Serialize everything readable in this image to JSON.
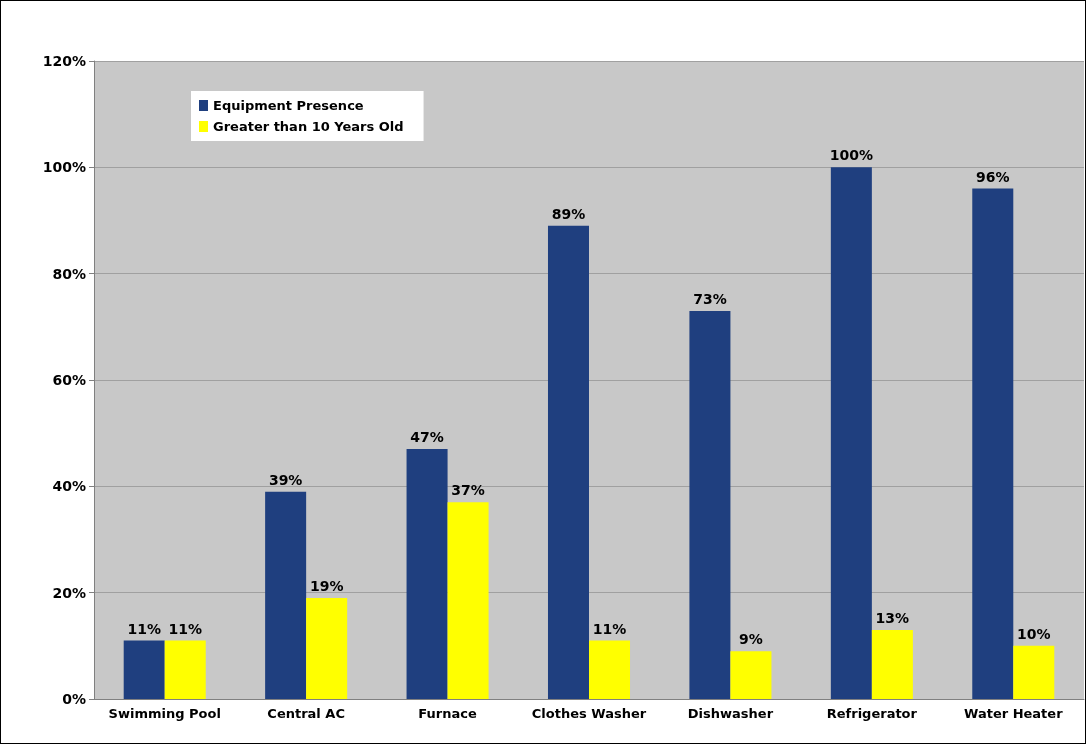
{
  "chart_data": {
    "type": "bar",
    "categories": [
      "Swimming Pool",
      "Central AC",
      "Furnace",
      "Clothes Washer",
      "Dishwasher",
      "Refrigerator",
      "Water Heater"
    ],
    "series": [
      {
        "name": "Equipment Presence",
        "color": "#1f3f7f",
        "values": [
          11,
          39,
          47,
          89,
          73,
          100,
          96
        ],
        "value_labels": [
          "11%",
          "39%",
          "47%",
          "89%",
          "73%",
          "100%",
          "96%"
        ]
      },
      {
        "name": "Greater than 10 Years Old",
        "color": "#ffff00",
        "values": [
          11,
          19,
          37,
          11,
          9,
          13,
          10
        ],
        "value_labels": [
          "11%",
          "19%",
          "37%",
          "11%",
          "9%",
          "13%",
          "10%"
        ]
      }
    ],
    "ylim": [
      0,
      120
    ],
    "yticks": [
      {
        "value": 0,
        "label": "0%"
      },
      {
        "value": 20,
        "label": "20%"
      },
      {
        "value": 40,
        "label": "40%"
      },
      {
        "value": 60,
        "label": "60%"
      },
      {
        "value": 80,
        "label": "80%"
      },
      {
        "value": 100,
        "label": "100%"
      },
      {
        "value": 120,
        "label": "120%"
      }
    ],
    "grid": "y",
    "legend": "top left"
  }
}
